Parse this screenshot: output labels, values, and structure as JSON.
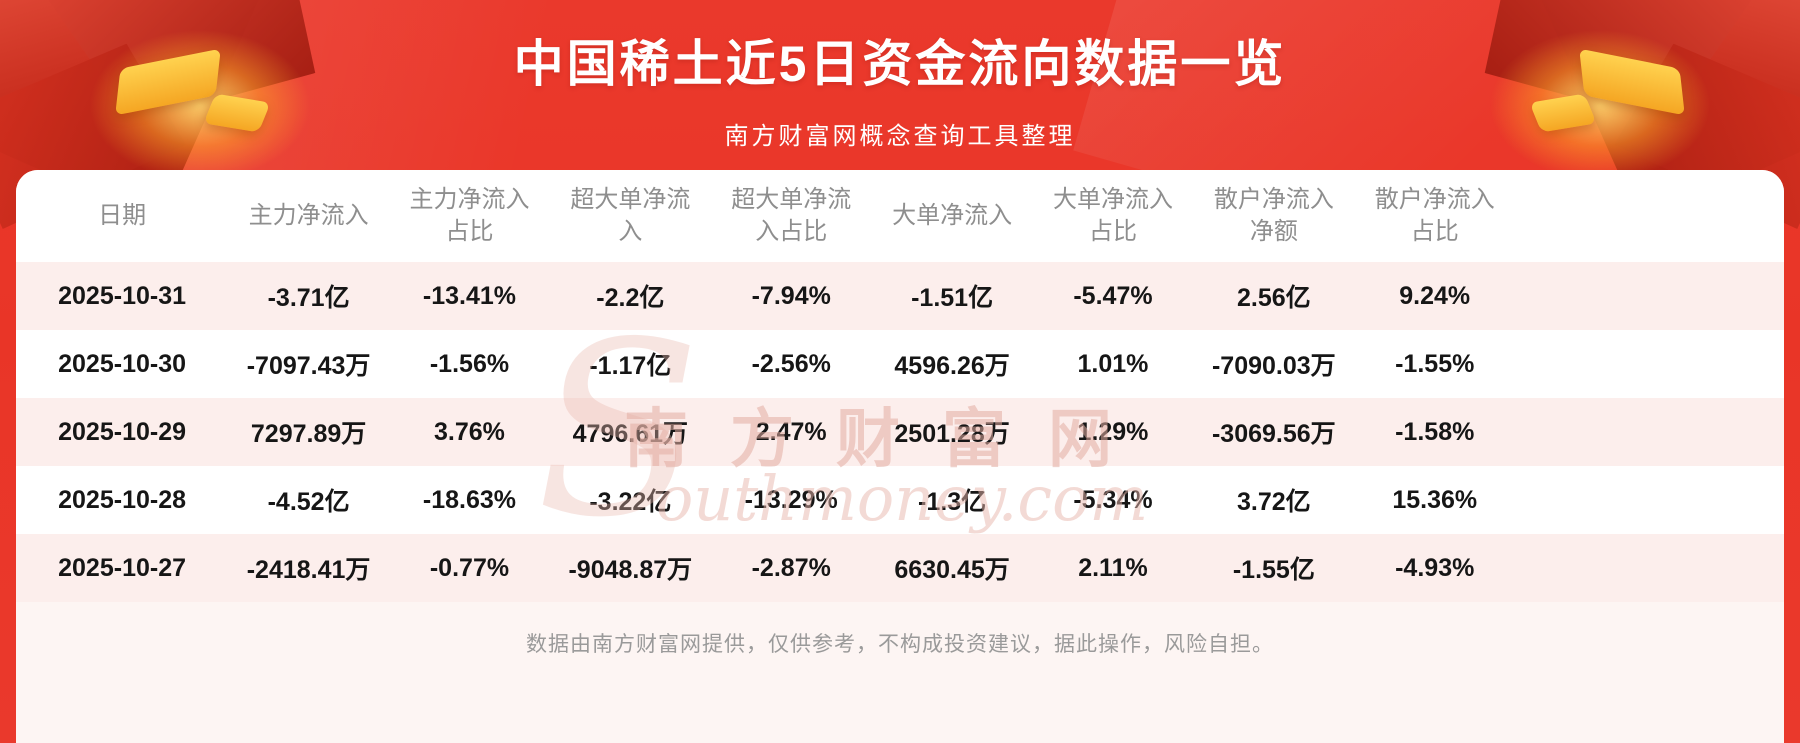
{
  "header": {
    "title": "中国稀土近5日资金流向数据一览",
    "subtitle": "南方财富网概念查询工具整理"
  },
  "chart_data": {
    "type": "table",
    "title": "中国稀土近5日资金流向数据一览",
    "columns": [
      "日期",
      "主力净流入",
      "主力净流入占比",
      "超大单净流入",
      "超大单净流入占比",
      "大单净流入",
      "大单净流入占比",
      "散户净流入净额",
      "散户净流入占比"
    ],
    "rows": [
      [
        "2025-10-31",
        "-3.71亿",
        "-13.41%",
        "-2.2亿",
        "-7.94%",
        "-1.51亿",
        "-5.47%",
        "2.56亿",
        "9.24%"
      ],
      [
        "2025-10-30",
        "-7097.43万",
        "-1.56%",
        "-1.17亿",
        "-2.56%",
        "4596.26万",
        "1.01%",
        "-7090.03万",
        "-1.55%"
      ],
      [
        "2025-10-29",
        "7297.89万",
        "3.76%",
        "4796.61万",
        "2.47%",
        "2501.28万",
        "1.29%",
        "-3069.56万",
        "-1.58%"
      ],
      [
        "2025-10-28",
        "-4.52亿",
        "-18.63%",
        "-3.22亿",
        "-13.29%",
        "-1.3亿",
        "-5.34%",
        "3.72亿",
        "15.36%"
      ],
      [
        "2025-10-27",
        "-2418.41万",
        "-0.77%",
        "-9048.87万",
        "-2.87%",
        "6630.45万",
        "2.11%",
        "-1.55亿",
        "-4.93%"
      ]
    ]
  },
  "watermark": {
    "initial": "S",
    "text_cn": "南方财富网",
    "text_en": "outhmoney.com"
  },
  "footer": {
    "disclaimer": "数据由南方财富网提供，仅供参考，不构成投资建议，据此操作，风险自担。"
  },
  "colors": {
    "background_red": "#ea392c",
    "stripe_pink": "#fceeec",
    "panel_bg": "#fdf5f3",
    "header_text": "#8e8e8e",
    "data_text": "#161616",
    "accent_gold": "#f5a623",
    "title_white": "#ffffff"
  }
}
